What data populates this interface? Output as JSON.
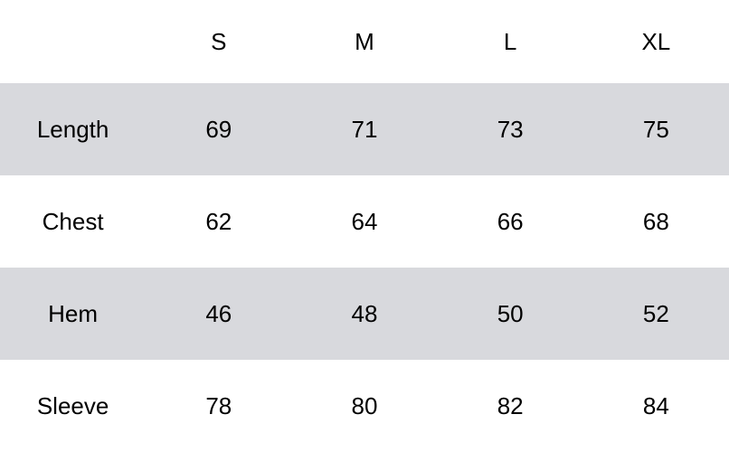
{
  "table": {
    "columns": [
      "",
      "S",
      "M",
      "L",
      "XL"
    ],
    "rows": [
      {
        "label": "Length",
        "values": [
          "69",
          "71",
          "73",
          "75"
        ],
        "shaded": true
      },
      {
        "label": "Chest",
        "values": [
          "62",
          "64",
          "66",
          "68"
        ],
        "shaded": false
      },
      {
        "label": "Hem",
        "values": [
          "46",
          "48",
          "50",
          "52"
        ],
        "shaded": true
      },
      {
        "label": "Sleeve",
        "values": [
          "78",
          "80",
          "82",
          "84"
        ],
        "shaded": false
      }
    ],
    "shade_color": "#d8d9dd"
  }
}
